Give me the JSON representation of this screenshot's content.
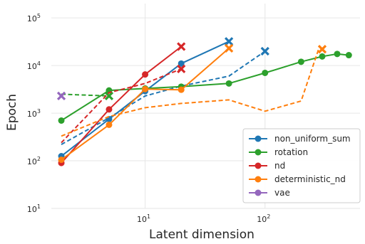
{
  "chart_data": {
    "type": "line",
    "title": "",
    "xlabel": "Latent dimension",
    "ylabel": "Epoch",
    "x_scale": "log",
    "y_scale": "log",
    "xlim": [
      1.65,
      620
    ],
    "ylim": [
      10,
      200000
    ],
    "x_ticks": [
      {
        "value": 10,
        "base": "10",
        "exp": "1"
      },
      {
        "value": 100,
        "base": "10",
        "exp": "2"
      }
    ],
    "y_ticks": [
      {
        "value": 10,
        "base": "10",
        "exp": "1"
      },
      {
        "value": 100,
        "base": "10",
        "exp": "2"
      },
      {
        "value": 1000,
        "base": "10",
        "exp": "3"
      },
      {
        "value": 10000,
        "base": "10",
        "exp": "4"
      },
      {
        "value": 100000,
        "base": "10",
        "exp": "5"
      }
    ],
    "grid": true,
    "legend_position": "lower-right",
    "legend": [
      {
        "name": "non_uniform_sum",
        "color": "#1f77b4"
      },
      {
        "name": "rotation",
        "color": "#2ca02c"
      },
      {
        "name": "nd",
        "color": "#d62728"
      },
      {
        "name": "deterministic_nd",
        "color": "#ff7f0e"
      },
      {
        "name": "vae",
        "color": "#9467bd"
      }
    ],
    "series": [
      {
        "color": "#1f77b4",
        "style": "solid",
        "end_marker": "x",
        "x": [
          2,
          5,
          10,
          20,
          50
        ],
        "y": [
          125,
          750,
          2900,
          11000,
          32000
        ]
      },
      {
        "color": "#1f77b4",
        "style": "dashed",
        "end_marker": "x",
        "x": [
          2,
          5,
          10,
          20,
          50,
          100
        ],
        "y": [
          220,
          800,
          2300,
          3700,
          6000,
          20000
        ]
      },
      {
        "color": "#2ca02c",
        "style": "solid",
        "end_marker": "none",
        "x": [
          2,
          5,
          10,
          20,
          50,
          100,
          200,
          300,
          400,
          500
        ],
        "y": [
          700,
          3000,
          3300,
          3600,
          4200,
          7000,
          12000,
          15500,
          17500,
          16500
        ]
      },
      {
        "color": "#2ca02c",
        "style": "dashed",
        "end_marker": "x",
        "x": [
          2,
          5
        ],
        "y": [
          2500,
          2300
        ]
      },
      {
        "color": "#d62728",
        "style": "solid",
        "end_marker": "x",
        "x": [
          2,
          5,
          10,
          20
        ],
        "y": [
          90,
          1200,
          6500,
          25000
        ]
      },
      {
        "color": "#d62728",
        "style": "dashed",
        "end_marker": "x",
        "x": [
          2,
          5,
          10,
          20
        ],
        "y": [
          240,
          2700,
          4200,
          8500
        ]
      },
      {
        "color": "#ff7f0e",
        "style": "solid",
        "end_marker": "x",
        "x": [
          2,
          5,
          10,
          20,
          50
        ],
        "y": [
          105,
          570,
          3200,
          3100,
          23000
        ]
      },
      {
        "color": "#ff7f0e",
        "style": "dashed",
        "end_marker": "x",
        "x": [
          2,
          5,
          10,
          20,
          50,
          100,
          200,
          280,
          300
        ],
        "y": [
          330,
          850,
          1300,
          1600,
          1900,
          1100,
          1800,
          22000,
          22000
        ]
      },
      {
        "color": "#9467bd",
        "style": "dashed",
        "end_marker": "x",
        "x": [
          2
        ],
        "y": [
          2300
        ]
      }
    ]
  }
}
